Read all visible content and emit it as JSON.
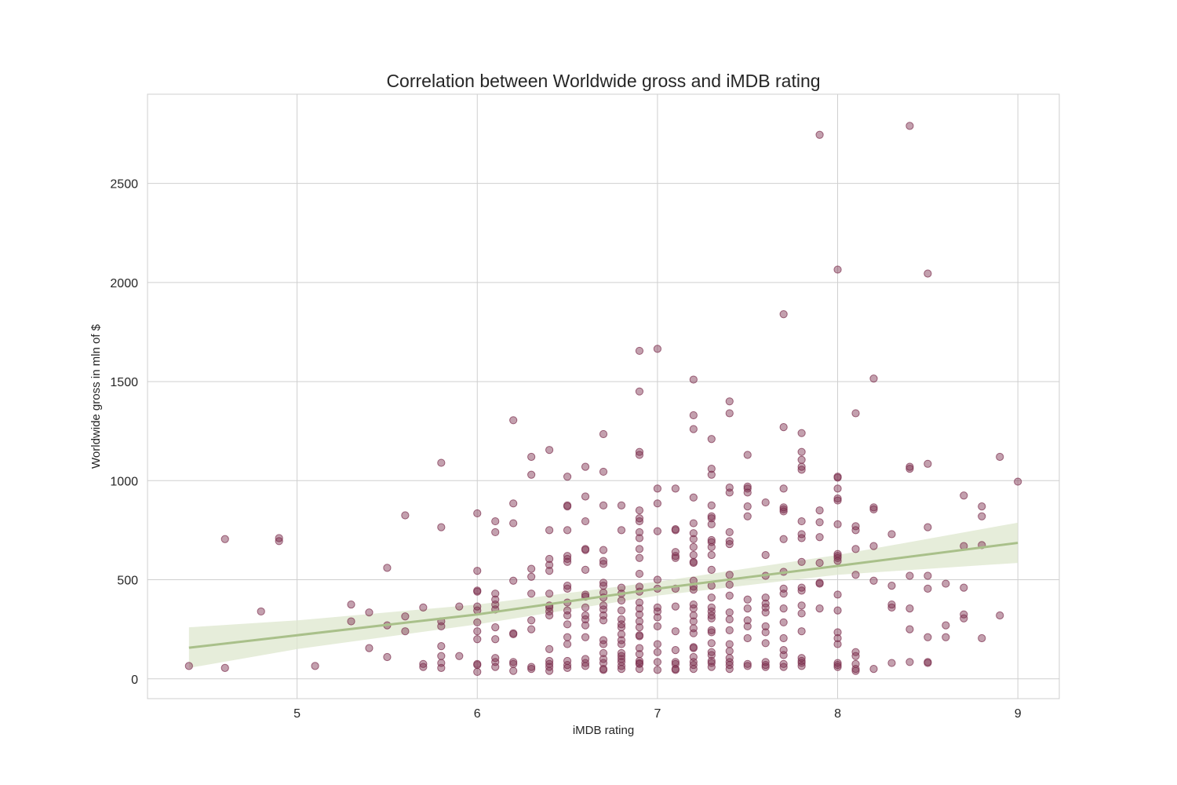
{
  "chart_data": {
    "type": "scatter",
    "title": "Correlation between Worldwide gross and iMDB rating",
    "xlabel": "iMDB rating",
    "ylabel": "Worldwide gross in mln of $",
    "xlim": [
      4.17,
      9.23
    ],
    "ylim": [
      -100,
      2950
    ],
    "xticks": [
      5,
      6,
      7,
      8,
      9
    ],
    "yticks": [
      0,
      500,
      1000,
      1500,
      2000,
      2500
    ],
    "grid": true,
    "legend": "none",
    "point_color": "#7b2c4c",
    "point_opacity": 0.45,
    "regression": {
      "color": "#a9c08a",
      "band_color": "#dde7cd",
      "x": [
        4.4,
        5.0,
        6.0,
        7.0,
        8.0,
        9.0
      ],
      "y": [
        157,
        220,
        325,
        455,
        570,
        686
      ],
      "lower": [
        55,
        150,
        275,
        420,
        525,
        585
      ],
      "upper": [
        260,
        295,
        375,
        490,
        625,
        788
      ]
    },
    "points": [
      [
        4.4,
        65
      ],
      [
        4.6,
        705
      ],
      [
        4.6,
        55
      ],
      [
        4.8,
        340
      ],
      [
        4.9,
        710
      ],
      [
        4.9,
        695
      ],
      [
        5.1,
        65
      ],
      [
        5.3,
        375
      ],
      [
        5.3,
        290
      ],
      [
        5.4,
        335
      ],
      [
        5.4,
        155
      ],
      [
        5.5,
        560
      ],
      [
        5.5,
        270
      ],
      [
        5.5,
        110
      ],
      [
        5.6,
        825
      ],
      [
        5.6,
        315
      ],
      [
        5.6,
        240
      ],
      [
        5.7,
        360
      ],
      [
        5.7,
        75
      ],
      [
        5.7,
        60
      ],
      [
        5.8,
        1090
      ],
      [
        5.8,
        765
      ],
      [
        5.8,
        290
      ],
      [
        5.8,
        265
      ],
      [
        5.8,
        165
      ],
      [
        5.8,
        115
      ],
      [
        5.8,
        80
      ],
      [
        5.8,
        55
      ],
      [
        5.9,
        365
      ],
      [
        5.9,
        115
      ],
      [
        6.0,
        835
      ],
      [
        6.0,
        545
      ],
      [
        6.0,
        445
      ],
      [
        6.0,
        440
      ],
      [
        6.0,
        365
      ],
      [
        6.0,
        345
      ],
      [
        6.0,
        285
      ],
      [
        6.0,
        240
      ],
      [
        6.0,
        200
      ],
      [
        6.0,
        75
      ],
      [
        6.0,
        70
      ],
      [
        6.0,
        35
      ],
      [
        6.1,
        795
      ],
      [
        6.1,
        740
      ],
      [
        6.1,
        430
      ],
      [
        6.1,
        400
      ],
      [
        6.1,
        375
      ],
      [
        6.1,
        350
      ],
      [
        6.1,
        260
      ],
      [
        6.1,
        200
      ],
      [
        6.1,
        105
      ],
      [
        6.1,
        85
      ],
      [
        6.1,
        60
      ],
      [
        6.2,
        1305
      ],
      [
        6.2,
        885
      ],
      [
        6.2,
        785
      ],
      [
        6.2,
        495
      ],
      [
        6.2,
        230
      ],
      [
        6.2,
        225
      ],
      [
        6.2,
        85
      ],
      [
        6.2,
        75
      ],
      [
        6.2,
        40
      ],
      [
        6.3,
        1120
      ],
      [
        6.3,
        1030
      ],
      [
        6.3,
        555
      ],
      [
        6.3,
        515
      ],
      [
        6.3,
        430
      ],
      [
        6.3,
        295
      ],
      [
        6.3,
        250
      ],
      [
        6.3,
        60
      ],
      [
        6.3,
        50
      ],
      [
        6.4,
        1155
      ],
      [
        6.4,
        750
      ],
      [
        6.4,
        605
      ],
      [
        6.4,
        575
      ],
      [
        6.4,
        545
      ],
      [
        6.4,
        430
      ],
      [
        6.4,
        370
      ],
      [
        6.4,
        360
      ],
      [
        6.4,
        340
      ],
      [
        6.4,
        320
      ],
      [
        6.4,
        150
      ],
      [
        6.4,
        90
      ],
      [
        6.4,
        75
      ],
      [
        6.4,
        60
      ],
      [
        6.4,
        40
      ],
      [
        6.5,
        1020
      ],
      [
        6.5,
        875
      ],
      [
        6.5,
        870
      ],
      [
        6.5,
        750
      ],
      [
        6.5,
        620
      ],
      [
        6.5,
        605
      ],
      [
        6.5,
        590
      ],
      [
        6.5,
        470
      ],
      [
        6.5,
        455
      ],
      [
        6.5,
        385
      ],
      [
        6.5,
        345
      ],
      [
        6.5,
        320
      ],
      [
        6.5,
        275
      ],
      [
        6.5,
        210
      ],
      [
        6.5,
        175
      ],
      [
        6.5,
        90
      ],
      [
        6.5,
        70
      ],
      [
        6.5,
        55
      ],
      [
        6.6,
        1070
      ],
      [
        6.6,
        920
      ],
      [
        6.6,
        795
      ],
      [
        6.6,
        655
      ],
      [
        6.6,
        650
      ],
      [
        6.6,
        550
      ],
      [
        6.6,
        425
      ],
      [
        6.6,
        415
      ],
      [
        6.6,
        360
      ],
      [
        6.6,
        320
      ],
      [
        6.6,
        300
      ],
      [
        6.6,
        270
      ],
      [
        6.6,
        210
      ],
      [
        6.6,
        100
      ],
      [
        6.6,
        80
      ],
      [
        6.6,
        65
      ],
      [
        6.7,
        1235
      ],
      [
        6.7,
        1045
      ],
      [
        6.7,
        875
      ],
      [
        6.7,
        650
      ],
      [
        6.7,
        595
      ],
      [
        6.7,
        580
      ],
      [
        6.7,
        485
      ],
      [
        6.7,
        470
      ],
      [
        6.7,
        435
      ],
      [
        6.7,
        410
      ],
      [
        6.7,
        370
      ],
      [
        6.7,
        350
      ],
      [
        6.7,
        320
      ],
      [
        6.7,
        295
      ],
      [
        6.7,
        195
      ],
      [
        6.7,
        175
      ],
      [
        6.7,
        130
      ],
      [
        6.7,
        100
      ],
      [
        6.7,
        80
      ],
      [
        6.7,
        50
      ],
      [
        6.7,
        45
      ],
      [
        6.8,
        875
      ],
      [
        6.8,
        750
      ],
      [
        6.8,
        460
      ],
      [
        6.8,
        430
      ],
      [
        6.8,
        395
      ],
      [
        6.8,
        345
      ],
      [
        6.8,
        300
      ],
      [
        6.8,
        275
      ],
      [
        6.8,
        260
      ],
      [
        6.8,
        225
      ],
      [
        6.8,
        195
      ],
      [
        6.8,
        175
      ],
      [
        6.8,
        130
      ],
      [
        6.8,
        115
      ],
      [
        6.8,
        100
      ],
      [
        6.8,
        85
      ],
      [
        6.8,
        65
      ],
      [
        6.8,
        50
      ],
      [
        6.9,
        1655
      ],
      [
        6.9,
        1450
      ],
      [
        6.9,
        1145
      ],
      [
        6.9,
        1130
      ],
      [
        6.9,
        850
      ],
      [
        6.9,
        810
      ],
      [
        6.9,
        795
      ],
      [
        6.9,
        740
      ],
      [
        6.9,
        710
      ],
      [
        6.9,
        655
      ],
      [
        6.9,
        610
      ],
      [
        6.9,
        530
      ],
      [
        6.9,
        465
      ],
      [
        6.9,
        440
      ],
      [
        6.9,
        385
      ],
      [
        6.9,
        355
      ],
      [
        6.9,
        325
      ],
      [
        6.9,
        290
      ],
      [
        6.9,
        260
      ],
      [
        6.9,
        220
      ],
      [
        6.9,
        215
      ],
      [
        6.9,
        155
      ],
      [
        6.9,
        125
      ],
      [
        6.9,
        90
      ],
      [
        6.9,
        80
      ],
      [
        6.9,
        75
      ],
      [
        6.9,
        50
      ],
      [
        7.0,
        1665
      ],
      [
        7.0,
        960
      ],
      [
        7.0,
        885
      ],
      [
        7.0,
        745
      ],
      [
        7.0,
        500
      ],
      [
        7.0,
        455
      ],
      [
        7.0,
        360
      ],
      [
        7.0,
        340
      ],
      [
        7.0,
        310
      ],
      [
        7.0,
        265
      ],
      [
        7.0,
        175
      ],
      [
        7.0,
        135
      ],
      [
        7.0,
        85
      ],
      [
        7.0,
        45
      ],
      [
        7.1,
        960
      ],
      [
        7.1,
        755
      ],
      [
        7.1,
        750
      ],
      [
        7.1,
        640
      ],
      [
        7.1,
        620
      ],
      [
        7.1,
        610
      ],
      [
        7.1,
        455
      ],
      [
        7.1,
        365
      ],
      [
        7.1,
        240
      ],
      [
        7.1,
        145
      ],
      [
        7.1,
        85
      ],
      [
        7.1,
        75
      ],
      [
        7.1,
        50
      ],
      [
        7.1,
        45
      ],
      [
        7.2,
        1510
      ],
      [
        7.2,
        1330
      ],
      [
        7.2,
        1260
      ],
      [
        7.2,
        915
      ],
      [
        7.2,
        785
      ],
      [
        7.2,
        735
      ],
      [
        7.2,
        705
      ],
      [
        7.2,
        665
      ],
      [
        7.2,
        625
      ],
      [
        7.2,
        590
      ],
      [
        7.2,
        585
      ],
      [
        7.2,
        495
      ],
      [
        7.2,
        465
      ],
      [
        7.2,
        450
      ],
      [
        7.2,
        375
      ],
      [
        7.2,
        355
      ],
      [
        7.2,
        320
      ],
      [
        7.2,
        290
      ],
      [
        7.2,
        255
      ],
      [
        7.2,
        230
      ],
      [
        7.2,
        160
      ],
      [
        7.2,
        155
      ],
      [
        7.2,
        110
      ],
      [
        7.2,
        85
      ],
      [
        7.2,
        70
      ],
      [
        7.2,
        50
      ],
      [
        7.3,
        1210
      ],
      [
        7.3,
        1060
      ],
      [
        7.3,
        1030
      ],
      [
        7.3,
        875
      ],
      [
        7.3,
        820
      ],
      [
        7.3,
        810
      ],
      [
        7.3,
        780
      ],
      [
        7.3,
        700
      ],
      [
        7.3,
        690
      ],
      [
        7.3,
        665
      ],
      [
        7.3,
        625
      ],
      [
        7.3,
        550
      ],
      [
        7.3,
        470
      ],
      [
        7.3,
        410
      ],
      [
        7.3,
        360
      ],
      [
        7.3,
        340
      ],
      [
        7.3,
        320
      ],
      [
        7.3,
        305
      ],
      [
        7.3,
        245
      ],
      [
        7.3,
        235
      ],
      [
        7.3,
        180
      ],
      [
        7.3,
        135
      ],
      [
        7.3,
        120
      ],
      [
        7.3,
        90
      ],
      [
        7.3,
        80
      ],
      [
        7.3,
        60
      ],
      [
        7.4,
        1400
      ],
      [
        7.4,
        1340
      ],
      [
        7.4,
        965
      ],
      [
        7.4,
        940
      ],
      [
        7.4,
        740
      ],
      [
        7.4,
        695
      ],
      [
        7.4,
        680
      ],
      [
        7.4,
        525
      ],
      [
        7.4,
        475
      ],
      [
        7.4,
        420
      ],
      [
        7.4,
        335
      ],
      [
        7.4,
        300
      ],
      [
        7.4,
        245
      ],
      [
        7.4,
        175
      ],
      [
        7.4,
        140
      ],
      [
        7.4,
        105
      ],
      [
        7.4,
        85
      ],
      [
        7.4,
        70
      ],
      [
        7.4,
        50
      ],
      [
        7.5,
        1130
      ],
      [
        7.5,
        970
      ],
      [
        7.5,
        960
      ],
      [
        7.5,
        940
      ],
      [
        7.5,
        870
      ],
      [
        7.5,
        820
      ],
      [
        7.5,
        400
      ],
      [
        7.5,
        355
      ],
      [
        7.5,
        295
      ],
      [
        7.5,
        265
      ],
      [
        7.5,
        205
      ],
      [
        7.5,
        75
      ],
      [
        7.5,
        65
      ],
      [
        7.6,
        890
      ],
      [
        7.6,
        625
      ],
      [
        7.6,
        520
      ],
      [
        7.6,
        410
      ],
      [
        7.6,
        380
      ],
      [
        7.6,
        360
      ],
      [
        7.6,
        335
      ],
      [
        7.6,
        265
      ],
      [
        7.6,
        235
      ],
      [
        7.6,
        180
      ],
      [
        7.6,
        85
      ],
      [
        7.6,
        70
      ],
      [
        7.6,
        60
      ],
      [
        7.7,
        1840
      ],
      [
        7.7,
        1270
      ],
      [
        7.7,
        960
      ],
      [
        7.7,
        865
      ],
      [
        7.7,
        855
      ],
      [
        7.7,
        845
      ],
      [
        7.7,
        705
      ],
      [
        7.7,
        540
      ],
      [
        7.7,
        455
      ],
      [
        7.7,
        430
      ],
      [
        7.7,
        355
      ],
      [
        7.7,
        285
      ],
      [
        7.7,
        205
      ],
      [
        7.7,
        145
      ],
      [
        7.7,
        120
      ],
      [
        7.7,
        75
      ],
      [
        7.7,
        60
      ],
      [
        7.8,
        1240
      ],
      [
        7.8,
        1145
      ],
      [
        7.8,
        1105
      ],
      [
        7.8,
        1070
      ],
      [
        7.8,
        1055
      ],
      [
        7.8,
        795
      ],
      [
        7.8,
        730
      ],
      [
        7.8,
        710
      ],
      [
        7.8,
        590
      ],
      [
        7.8,
        460
      ],
      [
        7.8,
        445
      ],
      [
        7.8,
        370
      ],
      [
        7.8,
        330
      ],
      [
        7.8,
        240
      ],
      [
        7.8,
        105
      ],
      [
        7.8,
        90
      ],
      [
        7.8,
        80
      ],
      [
        7.8,
        65
      ],
      [
        7.9,
        2745
      ],
      [
        7.9,
        850
      ],
      [
        7.9,
        790
      ],
      [
        7.9,
        715
      ],
      [
        7.9,
        585
      ],
      [
        7.9,
        485
      ],
      [
        7.9,
        480
      ],
      [
        7.9,
        355
      ],
      [
        8.0,
        2065
      ],
      [
        8.0,
        1020
      ],
      [
        8.0,
        1015
      ],
      [
        8.0,
        960
      ],
      [
        8.0,
        910
      ],
      [
        8.0,
        900
      ],
      [
        8.0,
        780
      ],
      [
        8.0,
        630
      ],
      [
        8.0,
        620
      ],
      [
        8.0,
        610
      ],
      [
        8.0,
        595
      ],
      [
        8.0,
        425
      ],
      [
        8.0,
        345
      ],
      [
        8.0,
        235
      ],
      [
        8.0,
        205
      ],
      [
        8.0,
        175
      ],
      [
        8.0,
        80
      ],
      [
        8.0,
        70
      ],
      [
        8.0,
        60
      ],
      [
        8.1,
        1340
      ],
      [
        8.1,
        770
      ],
      [
        8.1,
        750
      ],
      [
        8.1,
        655
      ],
      [
        8.1,
        525
      ],
      [
        8.1,
        135
      ],
      [
        8.1,
        115
      ],
      [
        8.1,
        75
      ],
      [
        8.1,
        50
      ],
      [
        8.1,
        40
      ],
      [
        8.2,
        1515
      ],
      [
        8.2,
        865
      ],
      [
        8.2,
        855
      ],
      [
        8.2,
        670
      ],
      [
        8.2,
        495
      ],
      [
        8.2,
        50
      ],
      [
        8.3,
        730
      ],
      [
        8.3,
        470
      ],
      [
        8.3,
        375
      ],
      [
        8.3,
        360
      ],
      [
        8.3,
        80
      ],
      [
        8.4,
        2790
      ],
      [
        8.4,
        1070
      ],
      [
        8.4,
        1060
      ],
      [
        8.4,
        520
      ],
      [
        8.4,
        355
      ],
      [
        8.4,
        250
      ],
      [
        8.4,
        85
      ],
      [
        8.5,
        2045
      ],
      [
        8.5,
        1085
      ],
      [
        8.5,
        765
      ],
      [
        8.5,
        520
      ],
      [
        8.5,
        455
      ],
      [
        8.5,
        210
      ],
      [
        8.5,
        85
      ],
      [
        8.5,
        80
      ],
      [
        8.6,
        480
      ],
      [
        8.6,
        270
      ],
      [
        8.6,
        210
      ],
      [
        8.7,
        925
      ],
      [
        8.7,
        670
      ],
      [
        8.7,
        460
      ],
      [
        8.7,
        325
      ],
      [
        8.7,
        305
      ],
      [
        8.8,
        870
      ],
      [
        8.8,
        820
      ],
      [
        8.8,
        675
      ],
      [
        8.8,
        205
      ],
      [
        8.9,
        1120
      ],
      [
        8.9,
        320
      ],
      [
        9.0,
        995
      ]
    ]
  }
}
